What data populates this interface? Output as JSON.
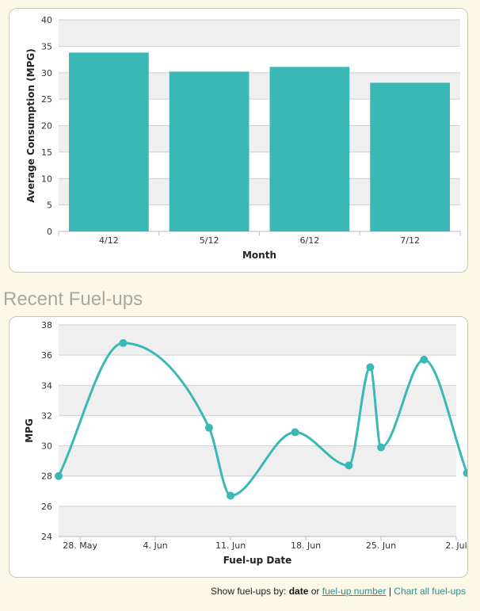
{
  "section_title": "Recent Fuel-ups",
  "footer": {
    "prefix": "Show fuel-ups by:",
    "option_date": "date",
    "or": "or",
    "option_number": "fuel-up number",
    "separator": "|",
    "chart_all": "Chart all fuel-ups"
  },
  "colors": {
    "series": "#3ab8b6",
    "band": "#efefef",
    "grid": "#cfcfcf",
    "axis": "#b0bcc7"
  },
  "chart_data": [
    {
      "type": "bar",
      "categories": [
        "4/12",
        "5/12",
        "6/12",
        "7/12"
      ],
      "values": [
        33.8,
        30.2,
        31.1,
        28.1
      ],
      "xlabel": "Month",
      "ylabel": "Average Consumption (MPG)",
      "ylim": [
        0,
        40
      ],
      "yticks": [
        0,
        5,
        10,
        15,
        20,
        25,
        30,
        35,
        40
      ],
      "grid": true,
      "alternate_bands": true
    },
    {
      "type": "line",
      "smooth": true,
      "xlabel": "Fuel-up Date",
      "ylabel": "MPG",
      "ylim": [
        24,
        38
      ],
      "yticks": [
        24,
        26,
        28,
        30,
        32,
        34,
        36,
        38
      ],
      "xticks": [
        "28. May",
        "4. Jun",
        "11. Jun",
        "18. Jun",
        "25. Jun",
        "2. Jul"
      ],
      "xlim": [
        "2012-05-26",
        "2012-07-02"
      ],
      "series": [
        {
          "x": [
            "2012-05-26",
            "2012-06-01",
            "2012-06-09",
            "2012-06-11",
            "2012-06-17",
            "2012-06-22",
            "2012-06-24",
            "2012-06-25",
            "2012-06-29",
            "2012-07-03"
          ],
          "values": [
            28.0,
            36.8,
            31.2,
            26.7,
            30.9,
            28.7,
            35.2,
            29.9,
            35.7,
            28.2
          ]
        }
      ]
    }
  ]
}
